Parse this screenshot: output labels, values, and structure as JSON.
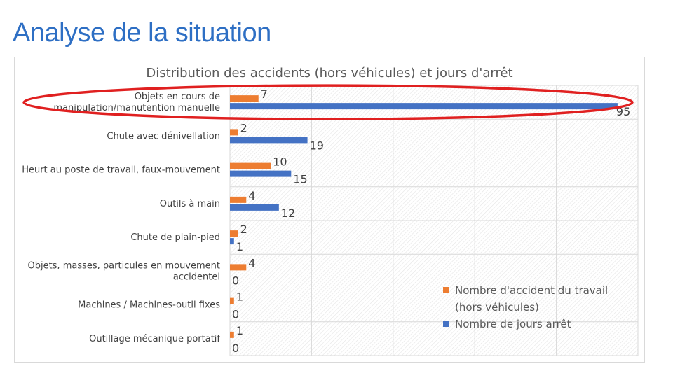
{
  "slide": {
    "title": "Analyse de la situation"
  },
  "chart_data": {
    "type": "bar",
    "orientation": "horizontal",
    "title": "Distribution des accidents (hors véhicules) et jours d'arrêt",
    "categories": [
      [
        "Objets en cours de",
        "manipulation/manutention manuelle"
      ],
      [
        "Chute avec dénivellation"
      ],
      [
        "Heurt au poste de travail, faux-mouvement"
      ],
      [
        "Outils à main"
      ],
      [
        "Chute de plain-pied"
      ],
      [
        "Objets, masses, particules en mouvement",
        "accidentel"
      ],
      [
        "Machines / Machines-outil fixes"
      ],
      [
        "Outillage mécanique portatif"
      ]
    ],
    "series": [
      {
        "name": "Nombre d'accident du travail (hors véhicules)",
        "legend_lines": [
          "Nombre d'accident du travail",
          "(hors véhicules)"
        ],
        "color": "#ed7d31",
        "values": [
          7,
          2,
          10,
          4,
          2,
          4,
          1,
          1
        ]
      },
      {
        "name": "Nombre de jours arrêt",
        "legend_lines": [
          "Nombre de jours arrêt"
        ],
        "color": "#4472c4",
        "values": [
          95,
          19,
          15,
          12,
          1,
          0,
          0,
          0
        ]
      }
    ],
    "xlim": [
      0,
      100
    ],
    "grid": true,
    "legend": "right",
    "highlight": {
      "category_index": 0,
      "color": "#e02020"
    }
  }
}
